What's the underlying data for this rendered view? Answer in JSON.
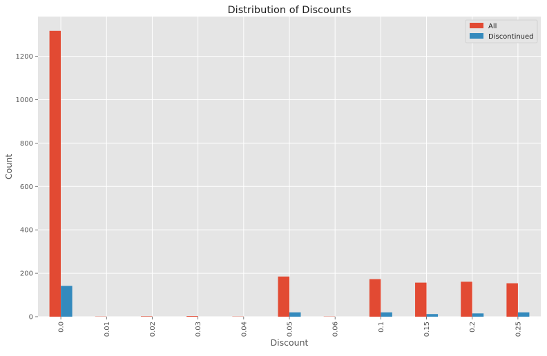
{
  "chart_data": {
    "type": "bar",
    "title": "Distribution of Discounts",
    "xlabel": "Discount",
    "ylabel": "Count",
    "categories": [
      "0.0",
      "0.01",
      "0.02",
      "0.03",
      "0.04",
      "0.05",
      "0.06",
      "0.1",
      "0.15",
      "0.2",
      "0.25"
    ],
    "series": [
      {
        "name": "All",
        "color": "#E24A33",
        "values": [
          1317,
          1,
          2,
          3,
          1,
          185,
          1,
          173,
          157,
          161,
          154
        ]
      },
      {
        "name": "Discontinued",
        "color": "#348ABD",
        "values": [
          142,
          0,
          0,
          0,
          0,
          20,
          0,
          20,
          12,
          15,
          20
        ]
      }
    ],
    "ylim": [
      0,
      1383
    ],
    "yticks": [
      0,
      200,
      400,
      600,
      800,
      1000,
      1200
    ],
    "grid": true,
    "legend_position": "top-right",
    "style": {
      "plot_background": "#E5E5E5",
      "grid_color": "#FFFFFF",
      "text_color": "#555555"
    }
  }
}
